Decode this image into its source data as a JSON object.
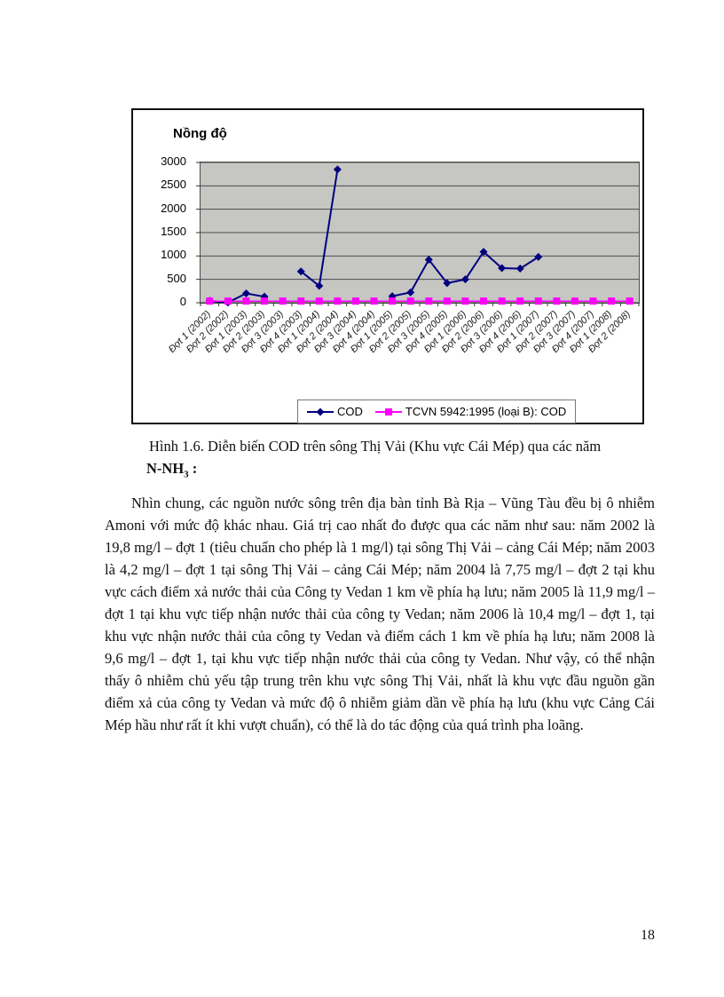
{
  "page": {
    "number": "18"
  },
  "figure": {
    "caption": "Hình 1.6. Diễn biến COD trên sông Thị Vải (Khu vực Cái Mép) qua các năm"
  },
  "section": {
    "heading_prefix": "N-NH",
    "heading_sub": "3",
    "heading_suffix": " :"
  },
  "body": {
    "paragraph": "Nhìn chung, các nguồn nước sông trên địa bàn tỉnh Bà Rịa – Vũng Tàu đều bị ô nhiễm Amoni với mức độ khác nhau. Giá trị cao nhất đo được qua các năm như sau: năm 2002 là 19,8 mg/l – đợt 1 (tiêu chuẩn cho phép là 1 mg/l) tại sông Thị Vải – cảng Cái Mép; năm 2003 là 4,2 mg/l – đợt 1 tại sông Thị Vải – cảng Cái Mép; năm 2004 là 7,75 mg/l – đợt 2 tại khu vực cách điểm xả nước thải của Công ty Vedan 1 km về phía hạ lưu; năm 2005 là 11,9 mg/l – đợt 1 tại khu vực tiếp nhận nước thải của công ty Vedan; năm 2006 là 10,4 mg/l – đợt 1, tại khu vực nhận nước thải của công ty Vedan và điểm cách 1 km về phía hạ lưu; năm 2008 là 9,6 mg/l – đợt 1, tại khu vực tiếp nhận nước thải của công ty Vedan. Như vậy, có thể nhận thấy ô nhiễm chủ yếu tập trung trên khu vực sông Thị Vải, nhất là khu vực đầu nguồn gần điểm xả của công ty Vedan và mức độ ô nhiễm giảm dần về phía hạ lưu (khu vực Cảng Cái Mép hầu như rất ít khi vượt chuẩn), có thể là do tác động của quá trình pha loãng."
  },
  "chart_data": {
    "type": "line",
    "title": "Nồng độ",
    "categories": [
      "Đợt 1 (2002)",
      "Đợt 2 (2002)",
      "Đợt 1 (2003)",
      "Đợt 2 (2003)",
      "Đợt 3 (2003)",
      "Đợt 4 (2003)",
      "Đợt 1 (2004)",
      "Đợt 2 (2004)",
      "Đợt 3 (2004)",
      "Đợt 4 (2004)",
      "Đợt 1 (2005)",
      "Đợt 2 (2005)",
      "Đợt 3 (2005)",
      "Đợt 4 (2005)",
      "Đợt 1 (2006)",
      "Đợt 2 (2006)",
      "Đợt 3 (2006)",
      "Đợt 4 (2006)",
      "Đợt 1 (2007)",
      "Đợt 2 (2007)",
      "Đợt 3 (2007)",
      "Đợt 4 (2007)",
      "Đợt 1 (2008)",
      "Đợt 2 (2008)"
    ],
    "series": [
      {
        "name": "COD",
        "color": "#000080",
        "marker": "diamond",
        "values": [
          40,
          5,
          200,
          130,
          null,
          670,
          360,
          2850,
          null,
          null,
          140,
          220,
          920,
          420,
          500,
          1090,
          740,
          730,
          980,
          null,
          null,
          null,
          null,
          null
        ]
      },
      {
        "name": "TCVN 5942:1995 (loại B): COD",
        "color": "#ff00ff",
        "marker": "square",
        "values": [
          35,
          35,
          35,
          35,
          35,
          35,
          35,
          35,
          35,
          35,
          35,
          35,
          35,
          35,
          35,
          35,
          35,
          35,
          35,
          35,
          35,
          35,
          35,
          35
        ]
      }
    ],
    "ylim": [
      0,
      3000
    ],
    "ytick_step": 500,
    "grid": true,
    "plot_bg": "#c6c6c3",
    "legend_position": "bottom"
  }
}
